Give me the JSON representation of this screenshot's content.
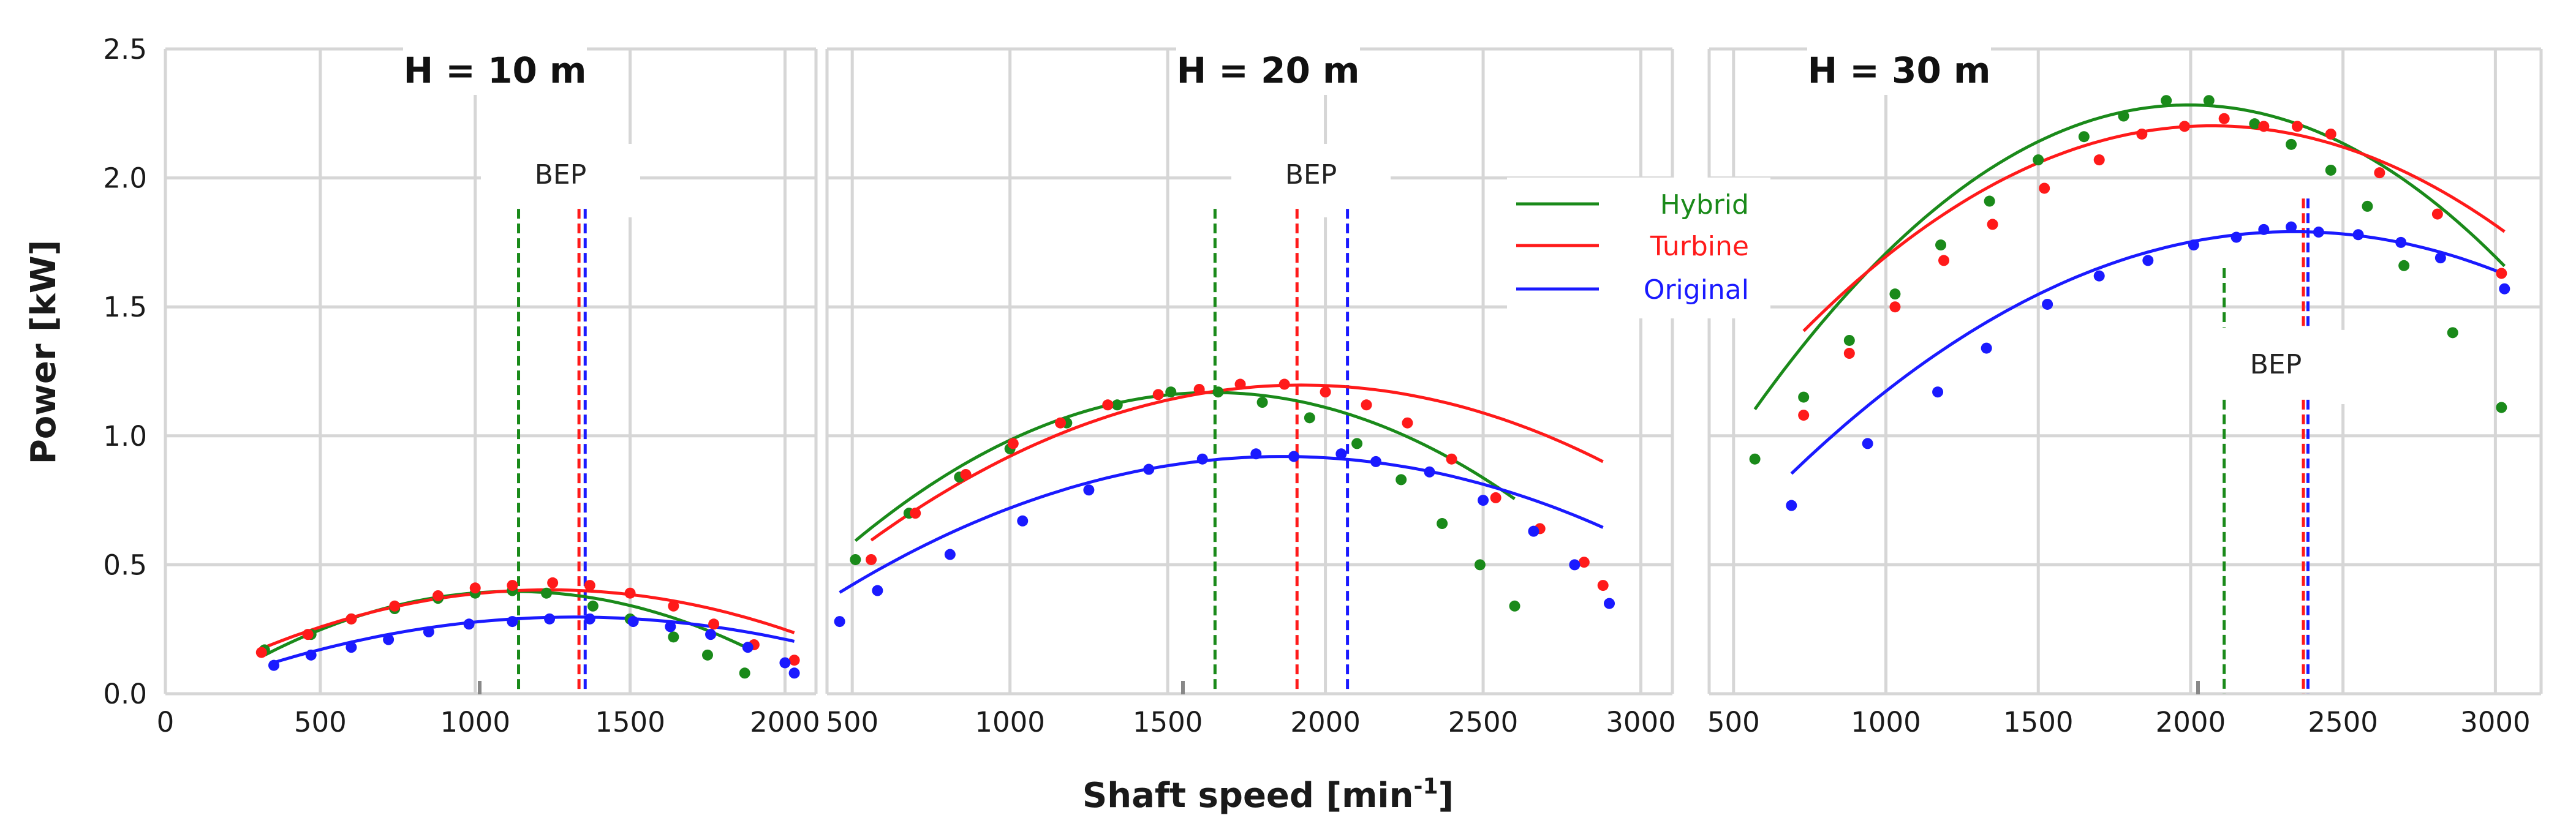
{
  "chart_data": {
    "type": "line",
    "xlabel": "Shaft speed [min",
    "xlabel_sup": "-1",
    "xlabel_end": "]",
    "ylabel": "Power [kW]",
    "ylim": [
      0,
      2.5
    ],
    "yticks": [
      "0.0",
      "0.5",
      "1.0",
      "1.5",
      "2.0",
      "2.5"
    ],
    "legend": {
      "position": "center",
      "entries": [
        {
          "name": "Hybrid",
          "color": "#1a8a1a"
        },
        {
          "name": "Turbine",
          "color": "#ff1a1a"
        },
        {
          "name": "Original",
          "color": "#1a1aff"
        }
      ]
    },
    "panels": [
      {
        "title": "H = 10 m",
        "xlim": [
          0,
          2100
        ],
        "xticks": [
          0,
          500,
          1000,
          1500,
          2000
        ],
        "bep_label": "BEP",
        "bep_lines": {
          "Hybrid": 1140,
          "Turbine": 1335,
          "Original": 1355
        },
        "series": [
          {
            "name": "Hybrid",
            "x": [
              320,
              470,
              600,
              740,
              880,
              1000,
              1120,
              1230,
              1380,
              1500,
              1640,
              1750,
              1870
            ],
            "y": [
              0.17,
              0.23,
              0.29,
              0.33,
              0.37,
              0.39,
              0.4,
              0.39,
              0.34,
              0.29,
              0.22,
              0.15,
              0.08
            ]
          },
          {
            "name": "Turbine",
            "x": [
              310,
              460,
              600,
              740,
              880,
              1000,
              1120,
              1250,
              1370,
              1500,
              1640,
              1770,
              1900,
              2030
            ],
            "y": [
              0.16,
              0.23,
              0.29,
              0.34,
              0.38,
              0.41,
              0.42,
              0.43,
              0.42,
              0.39,
              0.34,
              0.27,
              0.19,
              0.13
            ]
          },
          {
            "name": "Original",
            "x": [
              350,
              470,
              600,
              720,
              850,
              980,
              1120,
              1240,
              1370,
              1510,
              1630,
              1760,
              1880,
              2000,
              2030
            ],
            "y": [
              0.11,
              0.15,
              0.18,
              0.21,
              0.24,
              0.27,
              0.28,
              0.29,
              0.29,
              0.28,
              0.26,
              0.23,
              0.18,
              0.12,
              0.08
            ]
          }
        ],
        "fits": [
          {
            "name": "Hybrid",
            "x0": 320,
            "x1": 1870,
            "a": -3.84e-07,
            "b": 0.000862,
            "c": -0.087
          },
          {
            "name": "Turbine",
            "x0": 310,
            "x1": 2030,
            "a": -2.65e-07,
            "b": 0.000656,
            "c": -0.0032
          },
          {
            "name": "Original",
            "x0": 350,
            "x1": 2030,
            "a": -1.87e-07,
            "b": 0.000494,
            "c": -0.029
          }
        ]
      },
      {
        "title": "H = 20 m",
        "xlim": [
          420,
          3100
        ],
        "xticks": [
          500,
          1000,
          1500,
          2000,
          2500,
          3000
        ],
        "bep_label": "BEP",
        "bep_lines": {
          "Hybrid": 1650,
          "Turbine": 1910,
          "Original": 2070
        },
        "series": [
          {
            "name": "Hybrid",
            "x": [
              510,
              680,
              840,
              1000,
              1180,
              1340,
              1510,
              1660,
              1800,
              1950,
              2100,
              2240,
              2370,
              2490,
              2600
            ],
            "y": [
              0.52,
              0.7,
              0.84,
              0.95,
              1.05,
              1.12,
              1.17,
              1.17,
              1.13,
              1.07,
              0.97,
              0.83,
              0.66,
              0.5,
              0.34
            ]
          },
          {
            "name": "Turbine",
            "x": [
              560,
              700,
              860,
              1010,
              1160,
              1310,
              1470,
              1600,
              1730,
              1870,
              2000,
              2130,
              2260,
              2400,
              2540,
              2680,
              2820,
              2880
            ],
            "y": [
              0.52,
              0.7,
              0.85,
              0.97,
              1.05,
              1.12,
              1.16,
              1.18,
              1.2,
              1.2,
              1.17,
              1.12,
              1.05,
              0.91,
              0.76,
              0.64,
              0.51,
              0.42
            ]
          },
          {
            "name": "Original",
            "x": [
              460,
              580,
              810,
              1040,
              1250,
              1440,
              1610,
              1780,
              1900,
              2050,
              2160,
              2330,
              2500,
              2660,
              2790,
              2900
            ],
            "y": [
              0.28,
              0.4,
              0.54,
              0.67,
              0.79,
              0.87,
              0.91,
              0.93,
              0.92,
              0.93,
              0.9,
              0.86,
              0.75,
              0.63,
              0.5,
              0.35
            ]
          }
        ],
        "fits": [
          {
            "name": "Hybrid",
            "x0": 510,
            "x1": 2600,
            "a": -4.49e-07,
            "b": 0.001474,
            "c": -0.0418
          },
          {
            "name": "Turbine",
            "x0": 560,
            "x1": 2880,
            "a": -3.24e-07,
            "b": 0.001246,
            "c": -0.0012
          },
          {
            "name": "Original",
            "x0": 460,
            "x1": 2880,
            "a": -2.67e-07,
            "b": 0.000996,
            "c": -0.009
          }
        ]
      },
      {
        "title": "H = 30 m",
        "xlim": [
          420,
          3150
        ],
        "xticks": [
          500,
          1000,
          1500,
          2000,
          2500,
          3000
        ],
        "bep_label": "BEP",
        "bep_lines": {
          "Hybrid": 2110,
          "Turbine": 2370,
          "Original": 2385
        },
        "series": [
          {
            "name": "Hybrid",
            "x": [
              570,
              730,
              880,
              1030,
              1180,
              1340,
              1500,
              1650,
              1780,
              1920,
              2060,
              2210,
              2330,
              2460,
              2580,
              2700,
              2860,
              3020
            ],
            "y": [
              0.91,
              1.15,
              1.37,
              1.55,
              1.74,
              1.91,
              2.07,
              2.16,
              2.24,
              2.3,
              2.3,
              2.21,
              2.13,
              2.03,
              1.89,
              1.66,
              1.4,
              1.11
            ]
          },
          {
            "name": "Turbine",
            "x": [
              730,
              880,
              1030,
              1190,
              1350,
              1520,
              1700,
              1840,
              1980,
              2110,
              2240,
              2350,
              2460,
              2620,
              2810,
              3020
            ],
            "y": [
              1.08,
              1.32,
              1.5,
              1.68,
              1.82,
              1.96,
              2.07,
              2.17,
              2.2,
              2.23,
              2.2,
              2.2,
              2.17,
              2.02,
              1.86,
              1.63
            ]
          },
          {
            "name": "Original",
            "x": [
              690,
              940,
              1170,
              1330,
              1530,
              1700,
              1860,
              2010,
              2150,
              2240,
              2330,
              2420,
              2550,
              2690,
              2820,
              3030
            ],
            "y": [
              0.73,
              0.97,
              1.17,
              1.34,
              1.51,
              1.62,
              1.68,
              1.74,
              1.77,
              1.8,
              1.81,
              1.79,
              1.78,
              1.75,
              1.69,
              1.57
            ]
          }
        ],
        "fits": [
          {
            "name": "Hybrid",
            "x0": 570,
            "x1": 3030,
            "a": -5.82e-07,
            "b": 0.002321,
            "c": -0.031
          },
          {
            "name": "Turbine",
            "x0": 730,
            "x1": 3030,
            "a": -4.44e-07,
            "b": 0.001837,
            "c": 0.302
          },
          {
            "name": "Original",
            "x0": 690,
            "x1": 3030,
            "a": -3.45e-07,
            "b": 0.001614,
            "c": -0.096
          }
        ]
      }
    ]
  }
}
